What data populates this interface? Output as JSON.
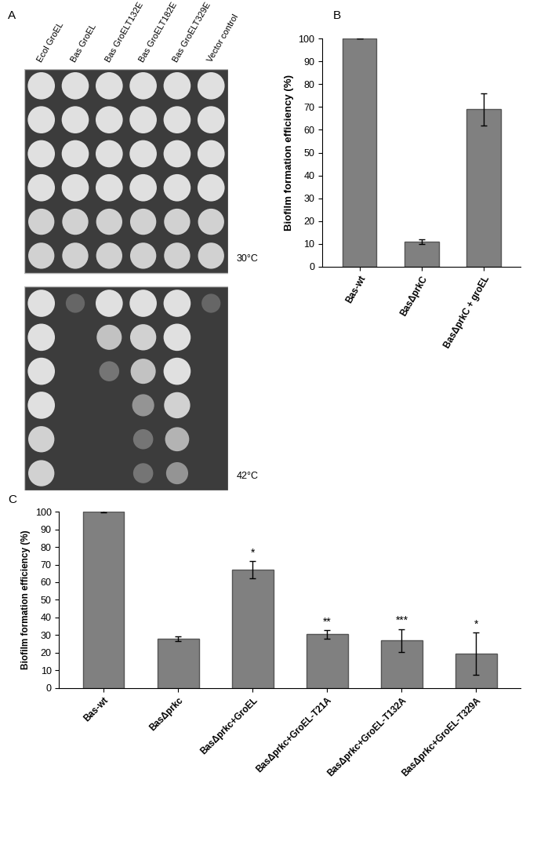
{
  "chart_data": [
    {
      "type": "spot_assay",
      "label": "A",
      "columns": [
        "Ecol GroEL",
        "Bas GroEL",
        "Bas GroELT132E",
        "Bas GroELT182E",
        "Bas GroELT329E",
        "Vector control"
      ],
      "plates": [
        {
          "name": "30°C",
          "growth": [
            [
              1,
              1,
              1,
              1,
              1,
              1
            ],
            [
              1,
              1,
              1,
              1,
              1,
              1
            ],
            [
              1,
              1,
              1,
              1,
              1,
              1
            ],
            [
              1,
              1,
              1,
              1,
              1,
              1
            ],
            [
              0.9,
              0.9,
              0.9,
              0.9,
              0.9,
              0.9
            ],
            [
              0.9,
              0.9,
              0.9,
              0.9,
              0.9,
              0.9
            ]
          ]
        },
        {
          "name": "42°C",
          "growth": [
            [
              1,
              0.2,
              1,
              1,
              1,
              0.2
            ],
            [
              1,
              0,
              0.8,
              0.9,
              1,
              0
            ],
            [
              1,
              0,
              0.3,
              0.8,
              1,
              0
            ],
            [
              1,
              0,
              0,
              0.5,
              0.9,
              0
            ],
            [
              0.9,
              0,
              0,
              0.3,
              0.7,
              0
            ],
            [
              0.9,
              0,
              0,
              0.3,
              0.5,
              0
            ]
          ]
        }
      ]
    },
    {
      "type": "bar",
      "label": "B",
      "categories": [
        "Bas-wt",
        "BasΔprkC",
        "BasΔprkC + groEL"
      ],
      "values": [
        100,
        11,
        69
      ],
      "errors": [
        0,
        1,
        7
      ],
      "y_label": "Biofilm formation efficiency (%)",
      "ylim": [
        0,
        100
      ],
      "yticks": [
        0,
        10,
        20,
        30,
        40,
        50,
        60,
        70,
        80,
        90,
        100
      ],
      "color": "#808080"
    },
    {
      "type": "bar",
      "label": "C",
      "categories": [
        "Bas-wt",
        "BasΔprkc",
        "BasΔprkc+GroEL",
        "BasΔprkc+GroEL-T21A",
        "BasΔprkc+GroEL-T132A",
        "BasΔprkc+GroEL-T329A"
      ],
      "values": [
        100,
        28,
        67,
        30.5,
        27,
        19.5
      ],
      "errors": [
        0.3,
        1.5,
        5,
        2.5,
        6.5,
        12
      ],
      "significance": [
        null,
        null,
        "*",
        "**",
        "***",
        "*"
      ],
      "y_label": "Biofilm formation efficiency (%)",
      "ylim": [
        0,
        100
      ],
      "yticks": [
        0,
        10,
        20,
        30,
        40,
        50,
        60,
        70,
        80,
        90,
        100
      ],
      "color": "#808080"
    }
  ]
}
